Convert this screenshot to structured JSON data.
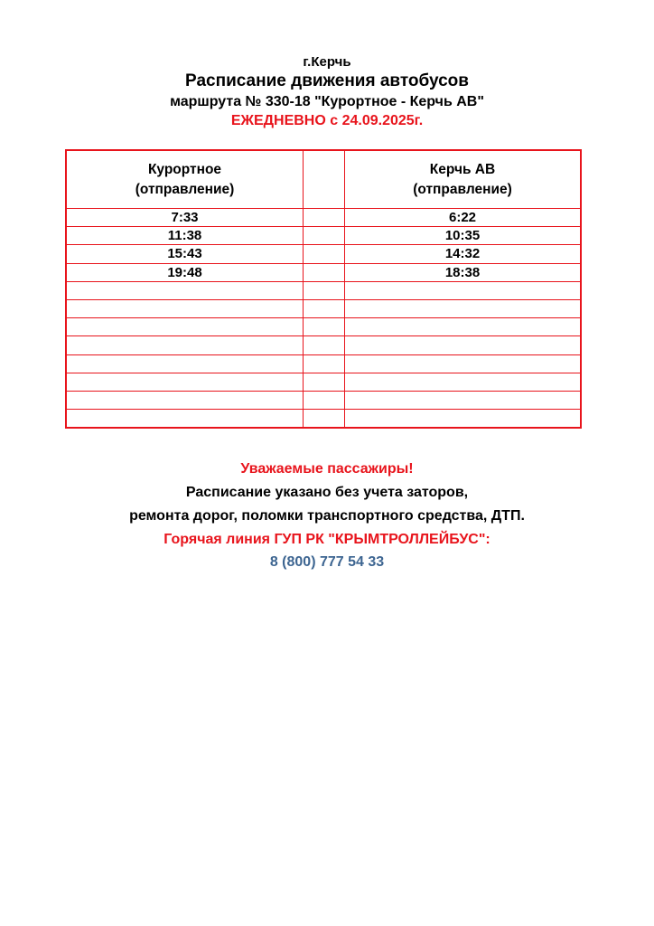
{
  "header": {
    "city": "г.Керчь",
    "title": "Расписание движения автобусов",
    "route": "маршрута № 330-18 \"Курортное - Керчь АВ\"",
    "validity": "ЕЖЕДНЕВНО с 24.09.2025г."
  },
  "table": {
    "columns": [
      {
        "name": "Курортное",
        "sub": "(отправление)"
      },
      {
        "name": "",
        "sub": ""
      },
      {
        "name": "Керчь АВ",
        "sub": "(отправление)"
      }
    ],
    "rows": [
      [
        "7:33",
        "",
        "6:22"
      ],
      [
        "11:38",
        "",
        "10:35"
      ],
      [
        "15:43",
        "",
        "14:32"
      ],
      [
        "19:48",
        "",
        "18:38"
      ],
      [
        "",
        "",
        ""
      ],
      [
        "",
        "",
        ""
      ],
      [
        "",
        "",
        ""
      ],
      [
        "",
        "",
        ""
      ],
      [
        "",
        "",
        ""
      ],
      [
        "",
        "",
        ""
      ],
      [
        "",
        "",
        ""
      ],
      [
        "",
        "",
        ""
      ]
    ]
  },
  "notice": {
    "greeting": "Уважаемые пассажиры!",
    "line1": "Расписание указано без учета заторов,",
    "line2": "ремонта дорог, поломки транспортного средства, ДТП.",
    "hotline_label": "Горячая линия ГУП РК \"КРЫМТРОЛЛЕЙБУС\":",
    "phone": "8 (800) 777 54 33"
  },
  "colors": {
    "accent_red": "#e8141c",
    "phone_blue": "#3d6591"
  }
}
